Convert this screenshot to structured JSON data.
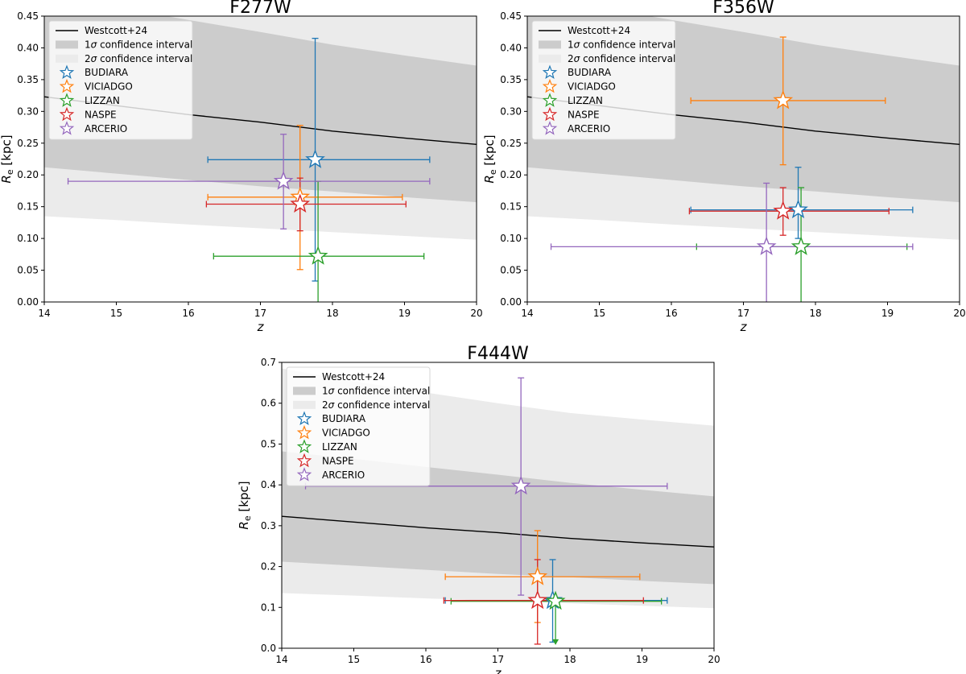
{
  "colors": {
    "model_line": "#000000",
    "band_1sigma": "#cccccc",
    "band_2sigma": "#ebebeb",
    "BUDIARA": "#1f77b4",
    "VICIADGO": "#ff7f0e",
    "LIZZAN": "#2ca02c",
    "NASPE": "#d62728",
    "ARCERIO": "#9467bd"
  },
  "chart_data": [
    {
      "type": "scatter",
      "title": "F277W",
      "xlabel": "z",
      "ylabel": "R_e [kpc]",
      "xlim": [
        14,
        20
      ],
      "ylim": [
        0,
        0.45
      ],
      "xticks": [
        "14",
        "15",
        "16",
        "17",
        "18",
        "19",
        "20"
      ],
      "yticks": [
        "0.00",
        "0.05",
        "0.10",
        "0.15",
        "0.20",
        "0.25",
        "0.30",
        "0.35",
        "0.40",
        "0.45"
      ],
      "legend": {
        "position": "upper-left",
        "entries": [
          "Westcott+24",
          "1σ confidence interval",
          "2σ confidence interval",
          "BUDIARA",
          "VICIADGO",
          "LIZZAN",
          "NASPE",
          "ARCERIO"
        ]
      },
      "model": {
        "name": "Westcott+24",
        "x": [
          14,
          15,
          16,
          17,
          18,
          19,
          20
        ],
        "y": [
          0.323,
          0.309,
          0.295,
          0.283,
          0.269,
          0.258,
          0.248
        ],
        "band1_upper": [
          0.482,
          0.464,
          0.444,
          0.425,
          0.405,
          0.388,
          0.372
        ],
        "band1_lower": [
          0.212,
          0.202,
          0.192,
          0.182,
          0.174,
          0.165,
          0.157
        ],
        "band2_upper": [
          0.62,
          0.59,
          0.56,
          0.53,
          0.5,
          0.48,
          0.46
        ],
        "band2_lower": [
          0.135,
          0.129,
          0.122,
          0.116,
          0.11,
          0.104,
          0.098
        ]
      },
      "series": [
        {
          "name": "BUDIARA",
          "x": 17.76,
          "y": 0.224,
          "xerr": [
            16.27,
            19.35
          ],
          "yerr": [
            0.033,
            0.415
          ],
          "upper_limit": false
        },
        {
          "name": "VICIADGO",
          "x": 17.55,
          "y": 0.165,
          "xerr": [
            16.27,
            18.97
          ],
          "yerr": [
            0.051,
            0.278
          ],
          "upper_limit": false
        },
        {
          "name": "LIZZAN",
          "x": 17.8,
          "y": 0.072,
          "xerr": [
            16.35,
            19.27
          ],
          "yerr": [
            0,
            0.19
          ],
          "upper_limit": false
        },
        {
          "name": "NASPE",
          "x": 17.55,
          "y": 0.154,
          "xerr": [
            16.25,
            19.02
          ],
          "yerr": [
            0.112,
            0.195
          ],
          "upper_limit": false
        },
        {
          "name": "ARCERIO",
          "x": 17.32,
          "y": 0.19,
          "xerr": [
            14.33,
            19.35
          ],
          "yerr": [
            0.115,
            0.264
          ],
          "upper_limit": false
        }
      ]
    },
    {
      "type": "scatter",
      "title": "F356W",
      "xlabel": "z",
      "ylabel": "R_e [kpc]",
      "xlim": [
        14,
        20
      ],
      "ylim": [
        0,
        0.45
      ],
      "xticks": [
        "14",
        "15",
        "16",
        "17",
        "18",
        "19",
        "20"
      ],
      "yticks": [
        "0.00",
        "0.05",
        "0.10",
        "0.15",
        "0.20",
        "0.25",
        "0.30",
        "0.35",
        "0.40",
        "0.45"
      ],
      "legend": {
        "position": "upper-left",
        "entries": [
          "Westcott+24",
          "1σ confidence interval",
          "2σ confidence interval",
          "BUDIARA",
          "VICIADGO",
          "LIZZAN",
          "NASPE",
          "ARCERIO"
        ]
      },
      "model": {
        "name": "Westcott+24",
        "x": [
          14,
          15,
          16,
          17,
          18,
          19,
          20
        ],
        "y": [
          0.323,
          0.309,
          0.295,
          0.283,
          0.269,
          0.258,
          0.248
        ],
        "band1_upper": [
          0.482,
          0.464,
          0.444,
          0.425,
          0.405,
          0.388,
          0.372
        ],
        "band1_lower": [
          0.212,
          0.202,
          0.192,
          0.182,
          0.174,
          0.165,
          0.157
        ],
        "band2_upper": [
          0.62,
          0.59,
          0.56,
          0.53,
          0.5,
          0.48,
          0.46
        ],
        "band2_lower": [
          0.135,
          0.129,
          0.122,
          0.116,
          0.11,
          0.104,
          0.098
        ]
      },
      "series": [
        {
          "name": "BUDIARA",
          "x": 17.76,
          "y": 0.145,
          "xerr": [
            16.27,
            19.35
          ],
          "yerr": [
            0.1,
            0.212
          ],
          "upper_limit": false
        },
        {
          "name": "VICIADGO",
          "x": 17.55,
          "y": 0.317,
          "xerr": [
            16.27,
            18.97
          ],
          "yerr": [
            0.216,
            0.417
          ],
          "upper_limit": false
        },
        {
          "name": "LIZZAN",
          "x": 17.8,
          "y": 0.087,
          "xerr": [
            16.35,
            19.27
          ],
          "yerr": [
            0,
            0.18
          ],
          "upper_limit": false
        },
        {
          "name": "NASPE",
          "x": 17.55,
          "y": 0.143,
          "xerr": [
            16.25,
            19.02
          ],
          "yerr": [
            0.105,
            0.18
          ],
          "upper_limit": false
        },
        {
          "name": "ARCERIO",
          "x": 17.32,
          "y": 0.087,
          "xerr": [
            14.33,
            19.35
          ],
          "yerr": [
            0,
            0.187
          ],
          "upper_limit": false
        }
      ]
    },
    {
      "type": "scatter",
      "title": "F444W",
      "xlabel": "z",
      "ylabel": "R_e [kpc]",
      "xlim": [
        14,
        20
      ],
      "ylim": [
        0,
        0.7
      ],
      "xticks": [
        "14",
        "15",
        "16",
        "17",
        "18",
        "19",
        "20"
      ],
      "yticks": [
        "0.0",
        "0.1",
        "0.2",
        "0.3",
        "0.4",
        "0.5",
        "0.6",
        "0.7"
      ],
      "legend": {
        "position": "upper-left",
        "entries": [
          "Westcott+24",
          "1σ confidence interval",
          "2σ confidence interval",
          "BUDIARA",
          "VICIADGO",
          "LIZZAN",
          "NASPE",
          "ARCERIO"
        ]
      },
      "model": {
        "name": "Westcott+24",
        "x": [
          14,
          15,
          16,
          17,
          18,
          19,
          20
        ],
        "y": [
          0.323,
          0.309,
          0.295,
          0.283,
          0.269,
          0.258,
          0.248
        ],
        "band1_upper": [
          0.482,
          0.464,
          0.444,
          0.425,
          0.405,
          0.388,
          0.372
        ],
        "band1_lower": [
          0.212,
          0.202,
          0.192,
          0.182,
          0.174,
          0.165,
          0.157
        ],
        "band2_upper": [
          0.685,
          0.654,
          0.626,
          0.6,
          0.576,
          0.56,
          0.545
        ],
        "band2_lower": [
          0.135,
          0.129,
          0.122,
          0.116,
          0.11,
          0.104,
          0.098
        ]
      },
      "series": [
        {
          "name": "BUDIARA",
          "x": 17.76,
          "y": 0.117,
          "xerr": [
            16.27,
            19.35
          ],
          "yerr": [
            0.015,
            0.217
          ],
          "upper_limit": false
        },
        {
          "name": "VICIADGO",
          "x": 17.55,
          "y": 0.175,
          "xerr": [
            16.27,
            18.97
          ],
          "yerr": [
            0.063,
            0.288
          ],
          "upper_limit": false
        },
        {
          "name": "LIZZAN",
          "x": 17.8,
          "y": 0.115,
          "xerr": [
            16.35,
            19.27
          ],
          "yerr": [
            0.01,
            0.115
          ],
          "upper_limit": true
        },
        {
          "name": "NASPE",
          "x": 17.55,
          "y": 0.117,
          "xerr": [
            16.25,
            19.02
          ],
          "yerr": [
            0.01,
            0.217
          ],
          "upper_limit": false
        },
        {
          "name": "ARCERIO",
          "x": 17.32,
          "y": 0.397,
          "xerr": [
            14.33,
            19.35
          ],
          "yerr": [
            0.13,
            0.662
          ],
          "upper_limit": false
        }
      ]
    }
  ]
}
